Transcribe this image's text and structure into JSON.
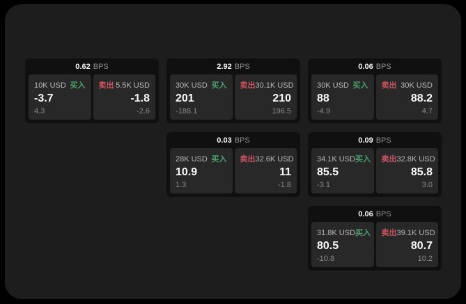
{
  "labels": {
    "bps_unit": "BPS",
    "buy": "买入",
    "sell": "卖出"
  },
  "colors": {
    "buy": "#4da06c",
    "sell": "#c9535f",
    "surface": "#1d1d1d",
    "card": "#101010",
    "panel": "#282828"
  },
  "cards": [
    {
      "col": 1,
      "row": 1,
      "bps": "0.62",
      "buy": {
        "amount": "10K USD",
        "price": "-3.7",
        "delta": "4.3"
      },
      "sell": {
        "amount": "5.5K USD",
        "price": "-1.8",
        "delta": "-2.6"
      }
    },
    {
      "col": 2,
      "row": 1,
      "bps": "2.92",
      "buy": {
        "amount": "30K USD",
        "price": "201",
        "delta": "-188.1"
      },
      "sell": {
        "amount": "30.1K USD",
        "price": "210",
        "delta": "196.5"
      }
    },
    {
      "col": 3,
      "row": 1,
      "bps": "0.06",
      "buy": {
        "amount": "30K USD",
        "price": "88",
        "delta": "-4.9"
      },
      "sell": {
        "amount": "30K USD",
        "price": "88.2",
        "delta": "4.7"
      }
    },
    {
      "col": 2,
      "row": 2,
      "bps": "0.03",
      "buy": {
        "amount": "28K USD",
        "price": "10.9",
        "delta": "1.3"
      },
      "sell": {
        "amount": "32.6K USD",
        "price": "11",
        "delta": "-1.8"
      }
    },
    {
      "col": 3,
      "row": 2,
      "bps": "0.09",
      "buy": {
        "amount": "34.1K USD",
        "price": "85.5",
        "delta": "-3.1"
      },
      "sell": {
        "amount": "32.8K USD",
        "price": "85.8",
        "delta": "3.0"
      }
    },
    {
      "col": 3,
      "row": 3,
      "bps": "0.06",
      "buy": {
        "amount": "31.8K USD",
        "price": "80.5",
        "delta": "-10.8"
      },
      "sell": {
        "amount": "39.1K USD",
        "price": "80.7",
        "delta": "10.2"
      }
    }
  ]
}
